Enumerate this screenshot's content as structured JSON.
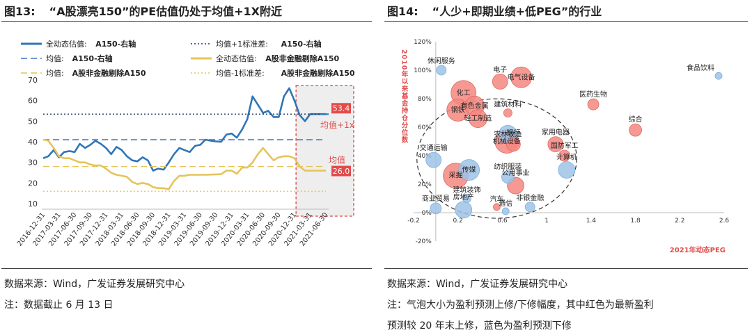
{
  "left_panel": {
    "fig_no": "图13:",
    "title": "“A股漂亮150”的PE估值仍处于均值+1X附近",
    "source": "数据来源：Wind，广发证券发展研究中心",
    "note": "注：数据截止 6 月 13 日",
    "legend": [
      {
        "label_a": "全动态估值:",
        "label_b": "A150-右轴",
        "style": "solid-blue"
      },
      {
        "label_a": "均值+1标准差:",
        "label_b": "A150-右轴",
        "style": "dotted-navy"
      },
      {
        "label_a": "均值:",
        "label_b": "A150-右轴",
        "style": "dashed-blue"
      },
      {
        "label_a": "全动态估值:",
        "label_b": "A股非金融剔除A150",
        "style": "solid-gold"
      },
      {
        "label_a": "均值:",
        "label_b": "A股非金融剔除A150",
        "style": "dashed-gold"
      },
      {
        "label_a": "均值-1标准差:",
        "label_b": "A股非金融剔除A150",
        "style": "dotted-gold"
      }
    ],
    "annotations": {
      "val_a150": "53.4",
      "val_other": "26.0",
      "lbl_plus1x": "均值+1x",
      "lbl_mean": "均值"
    }
  },
  "right_panel": {
    "fig_no": "图14:",
    "title": "“人少+即期业绩+低PEG”的行业",
    "ylabel": "2010年以来基金持仓分位数",
    "xlabel": "2021年动态PEG",
    "source": "数据来源：Wind，广发证券发展研究中心",
    "note_line1": "注：气泡大小为盈利预测上修/下修幅度，其中红色为最新盈利",
    "note_line2": "预测较 20 年末上修，蓝色为盈利预测下修"
  },
  "chart_data": [
    {
      "type": "line",
      "title": "“A股漂亮150”的PE估值仍处于均值+1X附近",
      "xlabel": "",
      "ylabel": "",
      "categories": [
        "2016-12-31",
        "2017-03-31",
        "2017-06-30",
        "2017-09-30",
        "2017-12-31",
        "2018-03-31",
        "2018-06-30",
        "2018-09-30",
        "2018-12-31",
        "2019-03-31",
        "2019-06-30",
        "2019-09-30",
        "2019-12-31",
        "2020-03-31",
        "2020-06-30",
        "2020-09-30",
        "2020-12-31",
        "2021-03-31",
        "2021-06-30"
      ],
      "ylim": [
        10,
        70
      ],
      "yticks": [
        10,
        20,
        30,
        40,
        50,
        60,
        70
      ],
      "grid": false,
      "series": [
        {
          "name": "全动态估值:A150-右轴",
          "color": "#2e75b6",
          "style": "solid",
          "x": [
            0,
            0.33,
            0.67,
            1,
            1.33,
            1.67,
            2,
            2.33,
            2.67,
            3,
            3.33,
            3.67,
            4,
            4.33,
            4.67,
            5,
            5.33,
            5.67,
            6,
            6.33,
            6.67,
            7,
            7.33,
            7.67,
            8,
            8.33,
            8.67,
            9,
            9.33,
            9.67,
            10,
            10.33,
            10.67,
            11,
            11.33,
            11.67,
            12,
            12.33,
            12.67,
            13,
            13.33,
            13.67,
            14,
            14.33,
            14.67,
            15,
            15.33,
            15.67,
            16,
            16.33,
            16.67,
            17,
            17.33,
            17.67,
            18
          ],
          "values": [
            32,
            33,
            36,
            32.5,
            35,
            35.5,
            35,
            39,
            37,
            38.5,
            40.5,
            39,
            37,
            34,
            37.5,
            36,
            33,
            31,
            30.5,
            32.5,
            31,
            26,
            27,
            26.5,
            30,
            34,
            37,
            36,
            35,
            38,
            38.5,
            41,
            40.5,
            40.2,
            40,
            43.5,
            44,
            42,
            46,
            51,
            62,
            58,
            54,
            55,
            52,
            52,
            62,
            66,
            60,
            53,
            50,
            53.4,
            53.4,
            53.4,
            53.4
          ]
        },
        {
          "name": "均值+1标准差:A150-右轴",
          "color": "#1f3864",
          "style": "dotted",
          "x": [
            0,
            18
          ],
          "values": [
            53.4,
            53.4
          ]
        },
        {
          "name": "均值:A150-右轴",
          "color": "#4472c4",
          "style": "dashed",
          "x": [
            0,
            18
          ],
          "values": [
            41,
            41
          ]
        },
        {
          "name": "全动态估值:A股非金融剔除A150",
          "color": "#e6c45b",
          "style": "solid",
          "x": [
            0,
            0.33,
            0.67,
            1,
            1.33,
            1.67,
            2,
            2.33,
            2.67,
            3,
            3.33,
            3.67,
            4,
            4.33,
            4.67,
            5,
            5.33,
            5.67,
            6,
            6.33,
            6.67,
            7,
            7.33,
            7.67,
            8,
            8.33,
            8.67,
            9,
            9.33,
            9.67,
            10,
            10.33,
            10.67,
            11,
            11.33,
            11.67,
            12,
            12.33,
            12.67,
            13,
            13.33,
            13.67,
            14,
            14.33,
            14.67,
            15,
            15.33,
            15.67,
            16,
            16.33,
            16.67,
            17,
            17.33,
            17.67,
            18
          ],
          "values": [
            41,
            40.5,
            37,
            33,
            32,
            32,
            31,
            30,
            30,
            29,
            28.5,
            28.5,
            27,
            25,
            24,
            23.5,
            23,
            20.5,
            19.5,
            20,
            19.5,
            18,
            17.5,
            17.5,
            17,
            21,
            23.5,
            23.5,
            24,
            24,
            24,
            24,
            24.1,
            24.2,
            24.3,
            26,
            26,
            24.5,
            27.5,
            27.5,
            30,
            34,
            37,
            34,
            31,
            32.5,
            33,
            33,
            32,
            28,
            26,
            26,
            26,
            26,
            26
          ]
        },
        {
          "name": "均值:A股非金融剔除A150",
          "color": "#e6c45b",
          "style": "dashed",
          "x": [
            0,
            18
          ],
          "values": [
            28,
            28
          ]
        },
        {
          "name": "均值-1标准差:A股非金融剔除A150",
          "color": "#e6c45b",
          "style": "dotted",
          "x": [
            0,
            18
          ],
          "values": [
            16,
            16
          ]
        }
      ]
    },
    {
      "type": "scatter",
      "title": "“人少+即期业绩+低PEG”的行业",
      "xlabel": "2021年动态PEG",
      "ylabel": "2010年以来基金持仓分位数",
      "xlim": [
        -0.2,
        2.6
      ],
      "ylim": [
        -20,
        120
      ],
      "xticks": [
        -0.2,
        0.2,
        0.6,
        1,
        1.4,
        1.8,
        2.2,
        2.6
      ],
      "yticks": [
        -20,
        0,
        20,
        40,
        60,
        80,
        100,
        120
      ],
      "ytick_unit": "%",
      "grid": false,
      "points": [
        {
          "name": "休闲服务",
          "x": 0.05,
          "y": 100,
          "size": 7,
          "color": "#9dc3e6"
        },
        {
          "name": "食品饮料",
          "x": 2.55,
          "y": 96,
          "size": 5,
          "color": "#9dc3e6"
        },
        {
          "name": "电子",
          "x": 0.58,
          "y": 92,
          "size": 11,
          "color": "#f4877f"
        },
        {
          "name": "电气设备",
          "x": 0.77,
          "y": 95,
          "size": 15,
          "color": "#f4877f"
        },
        {
          "name": "化工",
          "x": 0.25,
          "y": 84,
          "size": 18,
          "color": "#f4877f"
        },
        {
          "name": "有色金属",
          "x": 0.35,
          "y": 75,
          "size": 14,
          "color": "#f4877f"
        },
        {
          "name": "钢铁",
          "x": 0.2,
          "y": 72,
          "size": 16,
          "color": "#f4877f"
        },
        {
          "name": "轻工制造",
          "x": 0.38,
          "y": 66,
          "size": 13,
          "color": "#f4877f"
        },
        {
          "name": "建筑材料",
          "x": 0.65,
          "y": 70,
          "size": 6,
          "color": "#f4877f"
        },
        {
          "name": "医药生物",
          "x": 1.42,
          "y": 76,
          "size": 8,
          "color": "#f4877f"
        },
        {
          "name": "综合",
          "x": 1.8,
          "y": 58,
          "size": 9,
          "color": "#f4877f"
        },
        {
          "name": "农林牧渔",
          "x": 0.65,
          "y": 55,
          "size": 13,
          "color": "#9dc3e6"
        },
        {
          "name": "机械设备",
          "x": 0.64,
          "y": 50,
          "size": 17,
          "color": "#f4877f"
        },
        {
          "name": "银行",
          "x": 0.7,
          "y": 48,
          "size": 10,
          "color": "#f4877f"
        },
        {
          "name": "家用电器",
          "x": 1.08,
          "y": 48,
          "size": 11,
          "color": "#f4877f"
        },
        {
          "name": "国防军工",
          "x": 1.16,
          "y": 40,
          "size": 8,
          "color": "#f4877f"
        },
        {
          "name": "计算机",
          "x": 1.18,
          "y": 30,
          "size": 12,
          "color": "#9dc3e6"
        },
        {
          "name": "交通运输",
          "x": -0.02,
          "y": 37,
          "size": 11,
          "color": "#9dc3e6"
        },
        {
          "name": "采掘",
          "x": 0.18,
          "y": 26,
          "size": 18,
          "color": "#f4877f"
        },
        {
          "name": "传媒",
          "x": 0.3,
          "y": 30,
          "size": 15,
          "color": "#9dc3e6"
        },
        {
          "name": "纺织服装",
          "x": 0.65,
          "y": 25,
          "size": 9,
          "color": "#9dc3e6"
        },
        {
          "name": "公用事业",
          "x": 0.72,
          "y": 19,
          "size": 12,
          "color": "#f4877f"
        },
        {
          "name": "建筑装饰",
          "x": 0.28,
          "y": 10,
          "size": 6,
          "color": "#9dc3e6"
        },
        {
          "name": "商业贸易",
          "x": 0.0,
          "y": 3,
          "size": 8,
          "color": "#9dc3e6"
        },
        {
          "name": "房地产",
          "x": 0.25,
          "y": 2,
          "size": 12,
          "color": "#9dc3e6"
        },
        {
          "name": "汽车",
          "x": 0.55,
          "y": 4,
          "size": 5,
          "color": "#f4877f"
        },
        {
          "name": "通信",
          "x": 0.63,
          "y": 1,
          "size": 5,
          "color": "#9dc3e6"
        },
        {
          "name": "非银金融",
          "x": 0.85,
          "y": 4,
          "size": 7,
          "color": "#9dc3e6"
        }
      ]
    }
  ]
}
